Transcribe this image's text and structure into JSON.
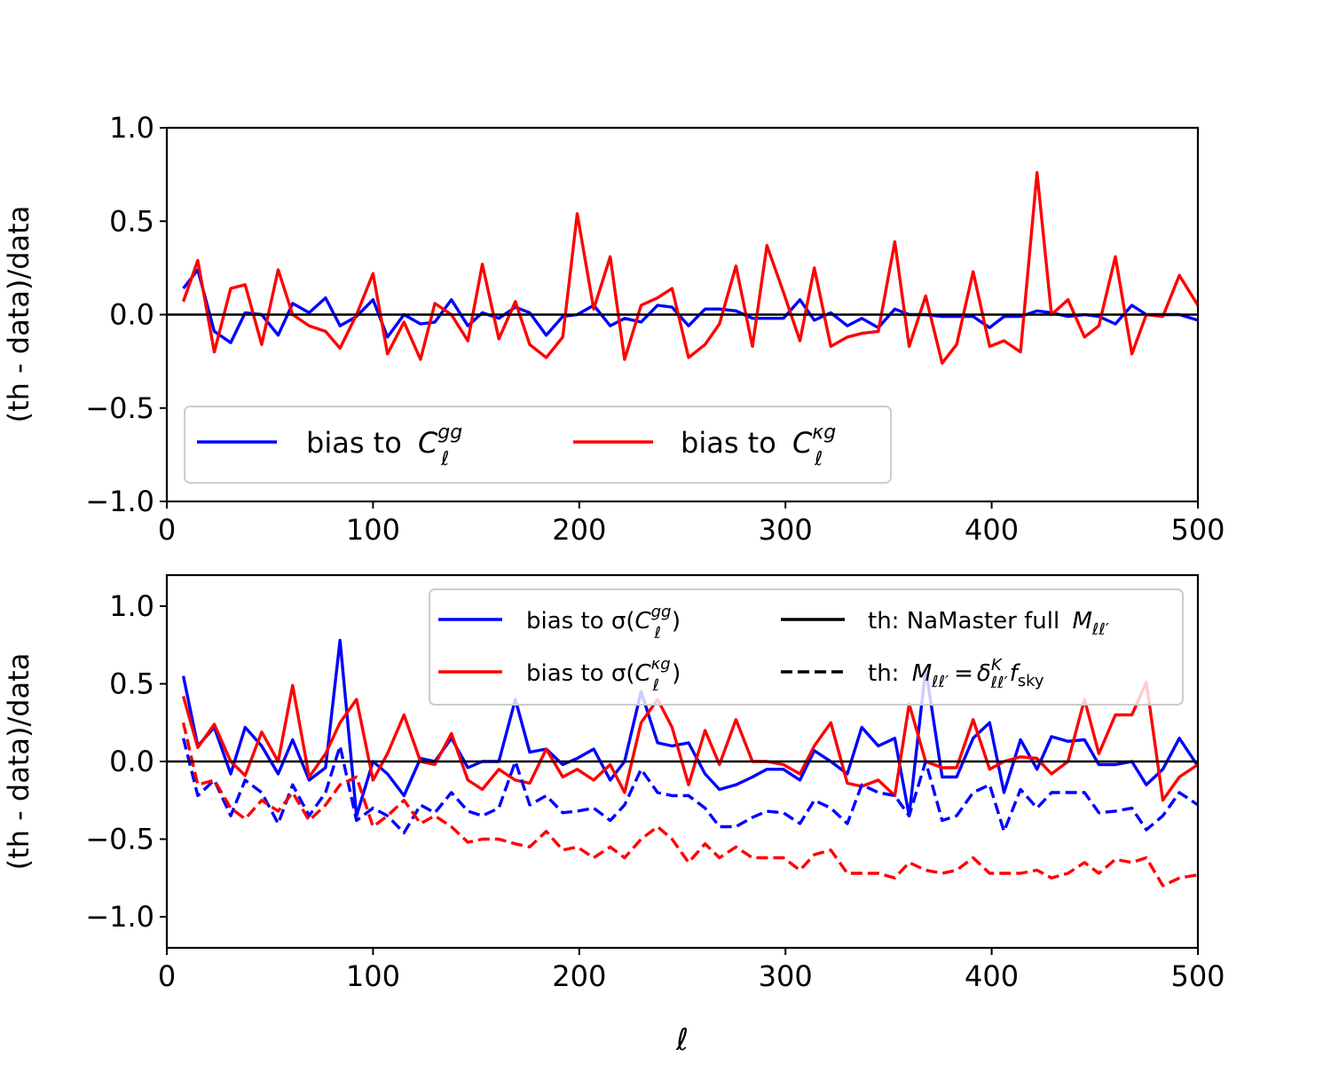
{
  "chart_data": [
    {
      "type": "line",
      "panel": "top",
      "xlabel": "",
      "ylabel": "(th - data)/data",
      "xlim": [
        0,
        500
      ],
      "ylim": [
        -1.0,
        1.0
      ],
      "xticks": [
        0,
        100,
        200,
        300,
        400,
        500
      ],
      "yticks": [
        1.0,
        0.5,
        0.0,
        -0.5,
        -1.0
      ],
      "ytick_labels": [
        "1.0",
        "0.5",
        "0.0",
        "−0.5",
        "−1.0"
      ],
      "x": [
        8,
        15,
        23,
        31,
        38,
        46,
        54,
        61,
        69,
        77,
        84,
        92,
        100,
        107,
        115,
        123,
        130,
        138,
        146,
        153,
        161,
        169,
        176,
        184,
        192,
        199,
        207,
        215,
        222,
        230,
        238,
        245,
        253,
        261,
        268,
        276,
        284,
        291,
        299,
        307,
        314,
        322,
        330,
        337,
        345,
        353,
        360,
        368,
        376,
        383,
        391,
        399,
        406,
        414,
        422,
        429,
        437,
        445,
        452,
        460,
        468,
        475,
        483,
        491,
        500
      ],
      "series": [
        {
          "name": "bias to C_ℓ^gg",
          "color": "#0000ff",
          "dash": false,
          "values": [
            0.14,
            0.24,
            -0.09,
            -0.15,
            0.01,
            0.0,
            -0.11,
            0.06,
            0.01,
            0.09,
            -0.06,
            -0.01,
            0.08,
            -0.12,
            0.0,
            -0.05,
            -0.04,
            0.08,
            -0.06,
            0.01,
            -0.02,
            0.04,
            0.01,
            -0.11,
            -0.01,
            0.0,
            0.05,
            -0.06,
            -0.02,
            -0.04,
            0.05,
            0.04,
            -0.06,
            0.03,
            0.03,
            0.02,
            -0.02,
            -0.02,
            -0.02,
            0.08,
            -0.03,
            0.01,
            -0.06,
            -0.02,
            -0.07,
            0.03,
            0.0,
            0.0,
            -0.01,
            -0.01,
            -0.01,
            -0.07,
            -0.01,
            -0.01,
            0.02,
            0.01,
            -0.01,
            0.0,
            -0.01,
            -0.05,
            0.05,
            0.0,
            0.0,
            0.0,
            -0.03
          ]
        },
        {
          "name": "bias to C_ℓ^κg",
          "color": "#ff0000",
          "dash": false,
          "values": [
            0.07,
            0.29,
            -0.2,
            0.14,
            0.16,
            -0.16,
            0.24,
            0.0,
            -0.06,
            -0.09,
            -0.18,
            0.0,
            0.22,
            -0.21,
            -0.04,
            -0.24,
            0.06,
            0.0,
            -0.14,
            0.27,
            -0.13,
            0.07,
            -0.16,
            -0.23,
            -0.12,
            0.54,
            0.03,
            0.31,
            -0.24,
            0.05,
            0.09,
            0.14,
            -0.23,
            -0.16,
            -0.05,
            0.26,
            -0.17,
            0.37,
            0.12,
            -0.14,
            0.25,
            -0.17,
            -0.12,
            -0.1,
            -0.09,
            0.39,
            -0.17,
            0.1,
            -0.26,
            -0.16,
            0.23,
            -0.17,
            -0.14,
            -0.2,
            0.76,
            0.0,
            0.08,
            -0.12,
            -0.06,
            0.31,
            -0.21,
            0.0,
            -0.01,
            0.21,
            0.05
          ]
        }
      ],
      "legend": {
        "position": "lower-left",
        "entries": [
          "bias to C_ℓ^gg",
          "bias to C_ℓ^κg"
        ]
      }
    },
    {
      "type": "line",
      "panel": "bottom",
      "xlabel": "ℓ",
      "ylabel": "(th - data)/data",
      "xlim": [
        0,
        500
      ],
      "ylim": [
        -1.2,
        1.2
      ],
      "xticks": [
        0,
        100,
        200,
        300,
        400,
        500
      ],
      "yticks": [
        1.0,
        0.5,
        0.0,
        -0.5,
        -1.0
      ],
      "ytick_labels": [
        "1.0",
        "0.5",
        "0.0",
        "−0.5",
        "−1.0"
      ],
      "x": [
        8,
        15,
        23,
        31,
        38,
        46,
        54,
        61,
        69,
        77,
        84,
        92,
        100,
        107,
        115,
        123,
        130,
        138,
        146,
        153,
        161,
        169,
        176,
        184,
        192,
        199,
        207,
        215,
        222,
        230,
        238,
        245,
        253,
        261,
        268,
        276,
        284,
        291,
        299,
        307,
        314,
        322,
        330,
        337,
        345,
        353,
        360,
        368,
        376,
        383,
        391,
        399,
        406,
        414,
        422,
        429,
        437,
        445,
        452,
        460,
        468,
        475,
        483,
        491,
        500
      ],
      "series": [
        {
          "name": "bias to σ(C_ℓ^gg) / NaMaster full",
          "color": "#0000ff",
          "dash": false,
          "values": [
            0.55,
            0.1,
            0.22,
            -0.08,
            0.22,
            0.1,
            -0.08,
            0.14,
            -0.12,
            -0.04,
            0.78,
            -0.35,
            0.0,
            -0.08,
            -0.22,
            0.02,
            0.0,
            0.15,
            -0.04,
            0.0,
            0.0,
            0.4,
            0.06,
            0.08,
            -0.02,
            0.02,
            0.08,
            -0.12,
            0.0,
            0.45,
            0.12,
            0.1,
            0.12,
            -0.08,
            -0.18,
            -0.15,
            -0.1,
            -0.05,
            -0.05,
            -0.12,
            0.07,
            0.0,
            -0.08,
            0.22,
            0.1,
            0.15,
            -0.35,
            0.6,
            -0.1,
            -0.1,
            0.15,
            0.25,
            -0.2,
            0.14,
            -0.05,
            0.16,
            0.13,
            0.14,
            -0.02,
            -0.02,
            0.0,
            -0.15,
            -0.05,
            0.15,
            -0.03
          ]
        },
        {
          "name": "bias to σ(C_ℓ^κg) / NaMaster full",
          "color": "#ff0000",
          "dash": false,
          "values": [
            0.42,
            0.09,
            0.24,
            0.0,
            -0.09,
            0.19,
            0.0,
            0.49,
            -0.1,
            0.05,
            0.25,
            0.4,
            -0.12,
            0.05,
            0.3,
            0.0,
            -0.02,
            0.18,
            -0.12,
            -0.18,
            -0.05,
            -0.12,
            -0.14,
            0.08,
            -0.1,
            -0.05,
            -0.12,
            -0.02,
            -0.2,
            0.25,
            0.4,
            0.22,
            -0.15,
            0.2,
            -0.02,
            0.27,
            0.0,
            0.0,
            -0.02,
            -0.08,
            0.1,
            0.25,
            -0.14,
            -0.16,
            -0.12,
            -0.22,
            0.37,
            0.0,
            -0.04,
            -0.04,
            0.27,
            -0.05,
            0.0,
            0.03,
            0.02,
            -0.08,
            0.0,
            0.4,
            0.05,
            0.3,
            0.3,
            0.51,
            -0.25,
            -0.1,
            -0.02
          ]
        },
        {
          "name": "bias to σ(C_ℓ^gg) / Kronecker",
          "color": "#0000ff",
          "dash": true,
          "values": [
            0.15,
            -0.22,
            -0.12,
            -0.35,
            -0.12,
            -0.2,
            -0.4,
            -0.15,
            -0.35,
            -0.2,
            0.1,
            -0.38,
            -0.3,
            -0.35,
            -0.46,
            -0.28,
            -0.33,
            -0.2,
            -0.32,
            -0.35,
            -0.3,
            0.0,
            -0.28,
            -0.22,
            -0.33,
            -0.32,
            -0.3,
            -0.38,
            -0.28,
            -0.05,
            -0.2,
            -0.22,
            -0.22,
            -0.3,
            -0.42,
            -0.42,
            -0.36,
            -0.32,
            -0.33,
            -0.4,
            -0.25,
            -0.3,
            -0.4,
            -0.15,
            -0.2,
            -0.22,
            -0.35,
            0.0,
            -0.38,
            -0.35,
            -0.2,
            -0.15,
            -0.45,
            -0.18,
            -0.3,
            -0.2,
            -0.2,
            -0.2,
            -0.33,
            -0.32,
            -0.3,
            -0.44,
            -0.35,
            -0.2,
            -0.28
          ]
        },
        {
          "name": "bias to σ(C_ℓ^κg) / Kronecker",
          "color": "#ff0000",
          "dash": true,
          "values": [
            0.25,
            -0.15,
            -0.12,
            -0.3,
            -0.37,
            -0.25,
            -0.32,
            -0.2,
            -0.38,
            -0.28,
            -0.15,
            -0.1,
            -0.42,
            -0.35,
            -0.25,
            -0.4,
            -0.35,
            -0.42,
            -0.52,
            -0.5,
            -0.5,
            -0.53,
            -0.55,
            -0.45,
            -0.57,
            -0.55,
            -0.62,
            -0.55,
            -0.62,
            -0.5,
            -0.42,
            -0.5,
            -0.65,
            -0.53,
            -0.62,
            -0.55,
            -0.62,
            -0.62,
            -0.62,
            -0.7,
            -0.6,
            -0.57,
            -0.72,
            -0.72,
            -0.72,
            -0.75,
            -0.65,
            -0.7,
            -0.72,
            -0.7,
            -0.62,
            -0.72,
            -0.72,
            -0.72,
            -0.7,
            -0.75,
            -0.72,
            -0.65,
            -0.72,
            -0.63,
            -0.65,
            -0.62,
            -0.8,
            -0.75,
            -0.73
          ]
        }
      ],
      "legend": {
        "position": "upper-right",
        "entries": [
          "bias to σ(C_ℓ^gg)",
          "bias to σ(C_ℓ^κg)",
          "th: NaMaster full M_ℓℓ′",
          "th: M_ℓℓ′ = δ^K_ℓℓ′ f_sky"
        ]
      }
    }
  ],
  "legend_text": {
    "bias_to": "bias to",
    "bias_to_sigma": "bias to σ(",
    "close_paren": ")",
    "th_namaster": "th: NaMaster full",
    "th_prefix": "th:",
    "C": "C",
    "M": "M",
    "gg": "gg",
    "kg": "κg",
    "ell": "ℓ",
    "ellell": "ℓℓ′",
    "equals": "=",
    "delta": "δ",
    "K": "K",
    "f": "f",
    "sky": "sky"
  }
}
